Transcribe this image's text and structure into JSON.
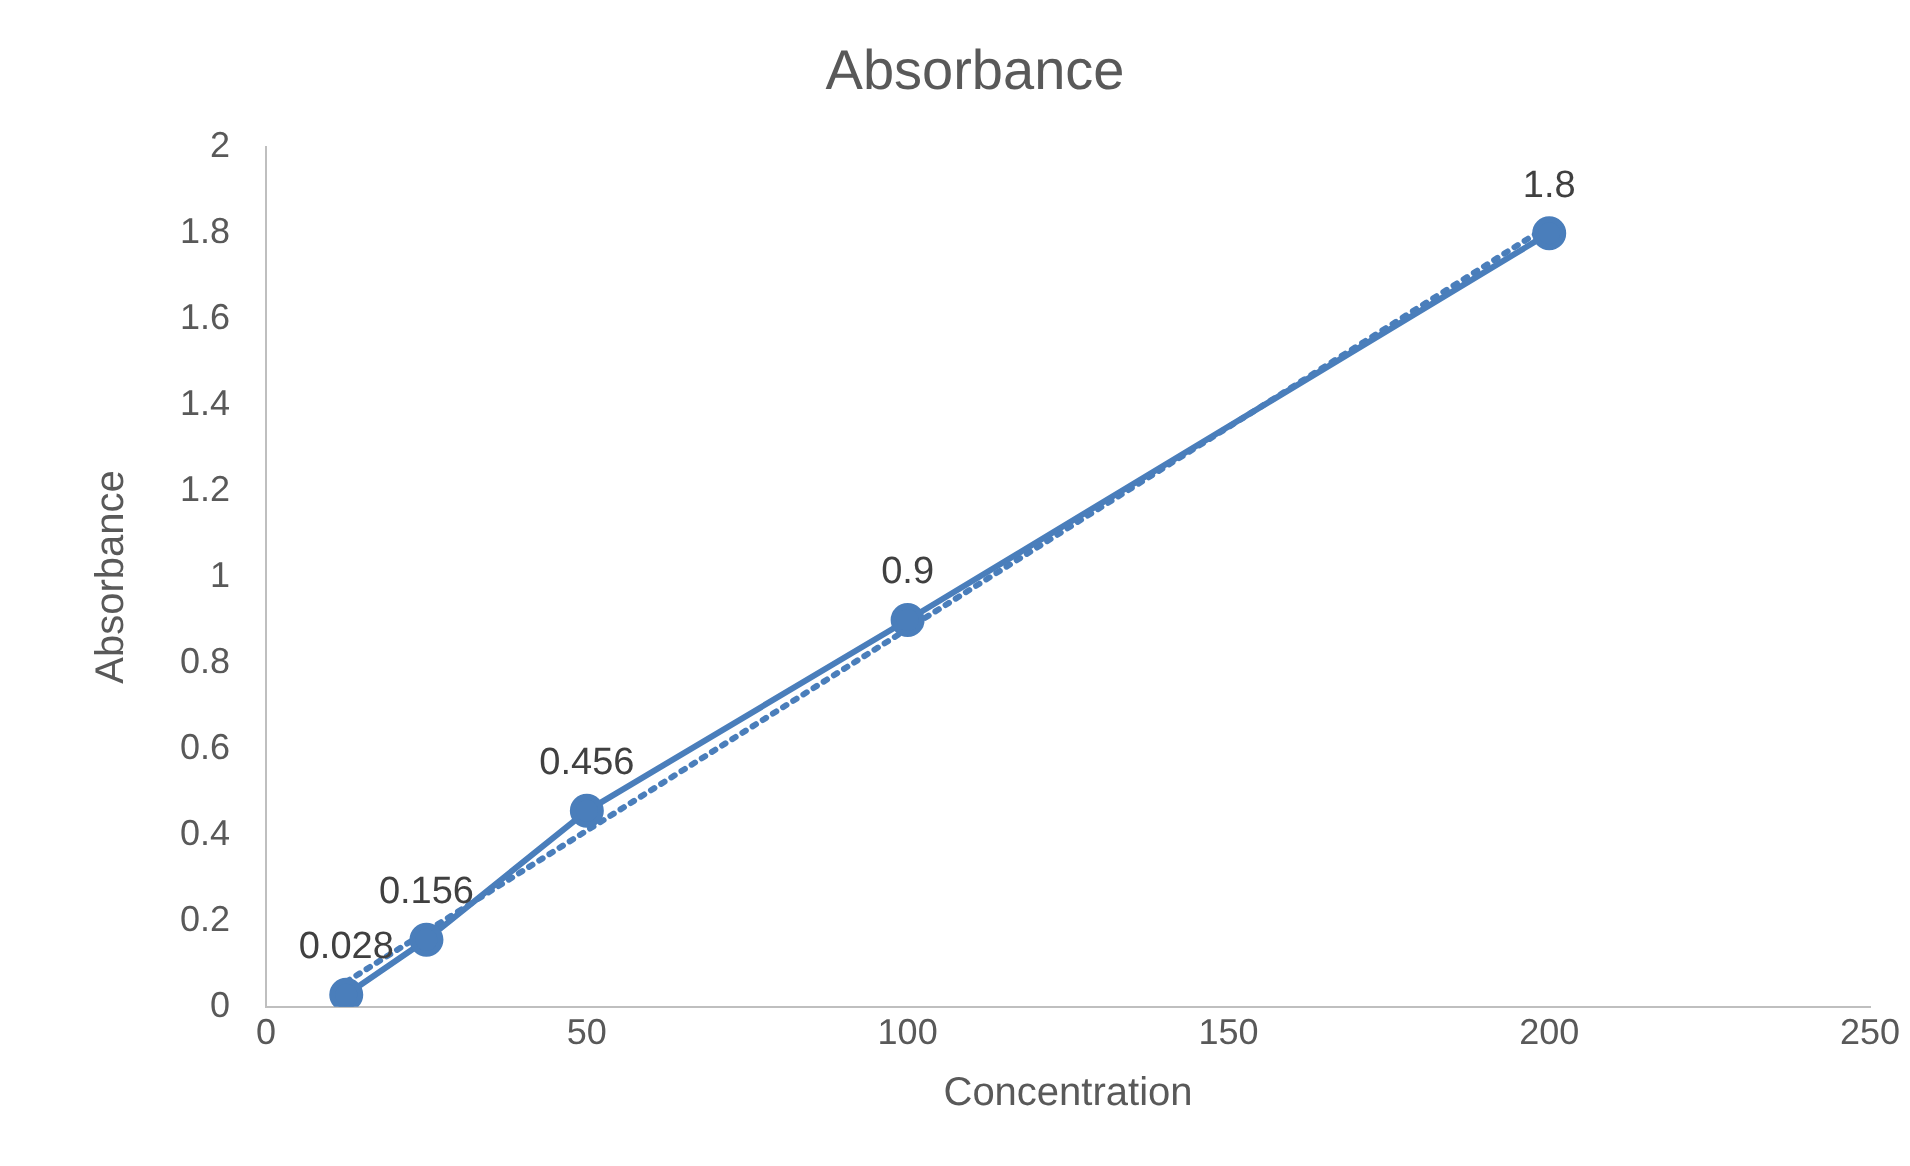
{
  "chart_data": {
    "type": "line",
    "title": "Absorbance",
    "xlabel": "Concentration",
    "ylabel": "Absorbance",
    "xlim": [
      0,
      250
    ],
    "xticks": [
      0,
      50,
      100,
      150,
      200,
      250
    ],
    "ylim": [
      0,
      2
    ],
    "yticks": [
      0,
      0.2,
      0.4,
      0.6,
      0.8,
      1,
      1.2,
      1.4,
      1.6,
      1.8,
      2
    ],
    "grid": false,
    "legend": false,
    "series": [
      {
        "color": "#4a7ebb",
        "x": [
          12.5,
          25,
          50,
          100,
          200
        ],
        "values": [
          0.028,
          0.156,
          0.456,
          0.9,
          1.8
        ],
        "marker": "circle",
        "line_style": "solid",
        "value_labels": [
          "0.028",
          "0.156",
          "0.456",
          "0.9",
          "1.8"
        ]
      },
      {
        "color": "#4a7ebb",
        "x": [
          12.5,
          200
        ],
        "values": [
          0.058,
          1.818
        ],
        "marker": "none",
        "line_style": "dotted"
      }
    ]
  }
}
